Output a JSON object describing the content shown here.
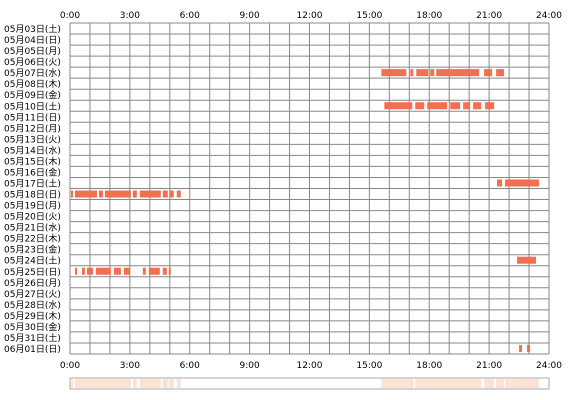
{
  "chart_data": {
    "type": "bar",
    "x_unit": "hour of day",
    "xlim": [
      0,
      24
    ],
    "x_ticks": [
      "0:00",
      "3:00",
      "6:00",
      "9:00",
      "12:00",
      "15:00",
      "18:00",
      "21:00",
      "24:00"
    ],
    "x_tick_values": [
      0,
      3,
      6,
      9,
      12,
      15,
      18,
      21,
      24
    ],
    "grid": true,
    "colors": {
      "bar": "#f07050",
      "bar_gap": "#ffffff",
      "grid": "#888888",
      "summary_fill": "#fde0d2",
      "summary_border": "#aaaaaa"
    },
    "rows": [
      {
        "label": "05月03日(土)",
        "segments": []
      },
      {
        "label": "05月04日(日)",
        "segments": []
      },
      {
        "label": "05月05日(月)",
        "segments": []
      },
      {
        "label": "05月06日(火)",
        "segments": []
      },
      {
        "label": "05月07日(水)",
        "segments": [
          [
            15.6,
            16.85
          ],
          [
            17.05,
            17.2
          ],
          [
            17.35,
            17.95
          ],
          [
            18.05,
            18.25
          ],
          [
            18.35,
            20.5
          ],
          [
            20.75,
            21.15
          ],
          [
            21.35,
            21.75
          ]
        ]
      },
      {
        "label": "05月08日(木)",
        "segments": []
      },
      {
        "label": "05月09日(金)",
        "segments": []
      },
      {
        "label": "05月10日(土)",
        "segments": [
          [
            15.75,
            17.15
          ],
          [
            17.3,
            17.75
          ],
          [
            17.9,
            18.9
          ],
          [
            19.05,
            19.55
          ],
          [
            19.7,
            20.05
          ],
          [
            20.2,
            20.6
          ],
          [
            20.8,
            21.25
          ]
        ]
      },
      {
        "label": "05月11日(日)",
        "segments": []
      },
      {
        "label": "05月12日(月)",
        "segments": []
      },
      {
        "label": "05月13日(火)",
        "segments": []
      },
      {
        "label": "05月14日(水)",
        "segments": []
      },
      {
        "label": "05月15日(木)",
        "segments": []
      },
      {
        "label": "05月16日(金)",
        "segments": []
      },
      {
        "label": "05月17日(土)",
        "segments": [
          [
            21.4,
            21.65
          ],
          [
            21.8,
            23.5
          ]
        ]
      },
      {
        "label": "05月18日(日)",
        "segments": [
          [
            0.05,
            0.15
          ],
          [
            0.25,
            1.35
          ],
          [
            1.45,
            1.65
          ],
          [
            1.75,
            3.05
          ],
          [
            3.15,
            3.35
          ],
          [
            3.5,
            4.55
          ],
          [
            4.65,
            4.9
          ],
          [
            5.0,
            5.2
          ],
          [
            5.35,
            5.55
          ]
        ]
      },
      {
        "label": "05月19日(月)",
        "segments": []
      },
      {
        "label": "05月20日(火)",
        "segments": []
      },
      {
        "label": "05月21日(水)",
        "segments": []
      },
      {
        "label": "05月22日(木)",
        "segments": []
      },
      {
        "label": "05月23日(金)",
        "segments": []
      },
      {
        "label": "05月24日(土)",
        "segments": [
          [
            22.4,
            23.35
          ]
        ]
      },
      {
        "label": "05月25日(日)",
        "segments": [
          [
            0.25,
            0.35
          ],
          [
            0.6,
            0.75
          ],
          [
            0.85,
            1.15
          ],
          [
            1.3,
            2.05
          ],
          [
            2.2,
            2.55
          ],
          [
            2.7,
            3.0
          ],
          [
            3.65,
            3.8
          ],
          [
            3.95,
            4.5
          ],
          [
            4.65,
            4.85
          ],
          [
            4.95,
            5.05
          ]
        ]
      },
      {
        "label": "05月26日(月)",
        "segments": []
      },
      {
        "label": "05月27日(火)",
        "segments": []
      },
      {
        "label": "05月28日(水)",
        "segments": []
      },
      {
        "label": "05月29日(木)",
        "segments": []
      },
      {
        "label": "05月30日(金)",
        "segments": []
      },
      {
        "label": "05月31日(土)",
        "segments": []
      },
      {
        "label": "06月01日(日)",
        "segments": [
          [
            22.5,
            22.65
          ],
          [
            22.9,
            23.05
          ]
        ]
      }
    ]
  }
}
